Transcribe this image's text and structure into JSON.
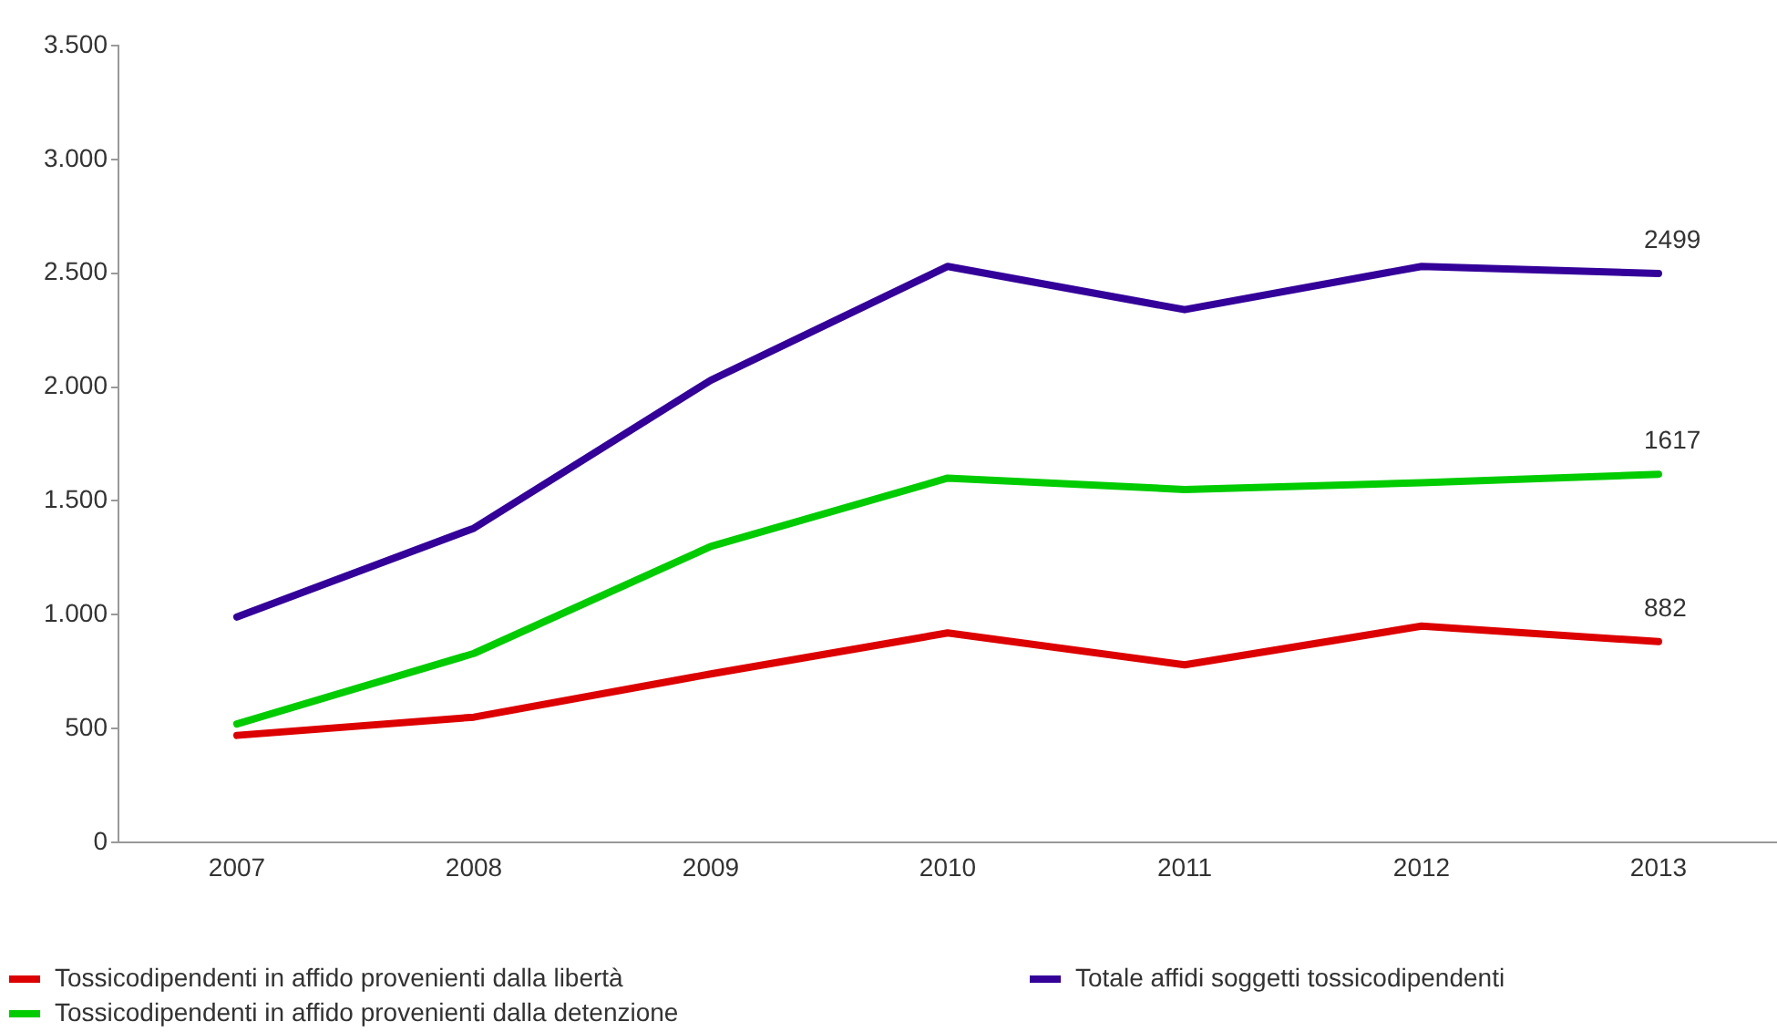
{
  "chart_data": {
    "type": "line",
    "categories": [
      "2007",
      "2008",
      "2009",
      "2010",
      "2011",
      "2012",
      "2013"
    ],
    "series": [
      {
        "name": "Tossicodipendenti in affido provenienti dalla libertà",
        "color": "#dd0000",
        "values": [
          470,
          550,
          740,
          920,
          780,
          950,
          882
        ],
        "value_labels": [
          null,
          null,
          null,
          null,
          null,
          null,
          "882"
        ]
      },
      {
        "name": "Tossicodipendenti in affido provenienti dalla detenzione",
        "color": "#00cc00",
        "values": [
          520,
          830,
          1300,
          1600,
          1550,
          1580,
          1617
        ],
        "value_labels": [
          null,
          null,
          null,
          null,
          null,
          null,
          "1617"
        ]
      },
      {
        "name": "Totale affidi soggetti tossicodipendenti",
        "color": "#330099",
        "values": [
          990,
          1380,
          2030,
          2530,
          2340,
          2530,
          2499
        ],
        "value_labels": [
          null,
          null,
          null,
          null,
          null,
          null,
          "2499"
        ]
      }
    ],
    "ylim": [
      0,
      3500
    ],
    "yticks": [
      0,
      500,
      {
        "value": 1000,
        "label": "1.000"
      },
      {
        "value": 1500,
        "label": "1.500"
      },
      {
        "value": 2000,
        "label": "2.000"
      },
      {
        "value": 2500,
        "label": "2.500"
      },
      {
        "value": 3000,
        "label": "3.000"
      },
      {
        "value": 3500,
        "label": "3.500"
      }
    ],
    "legend": "bottom"
  }
}
